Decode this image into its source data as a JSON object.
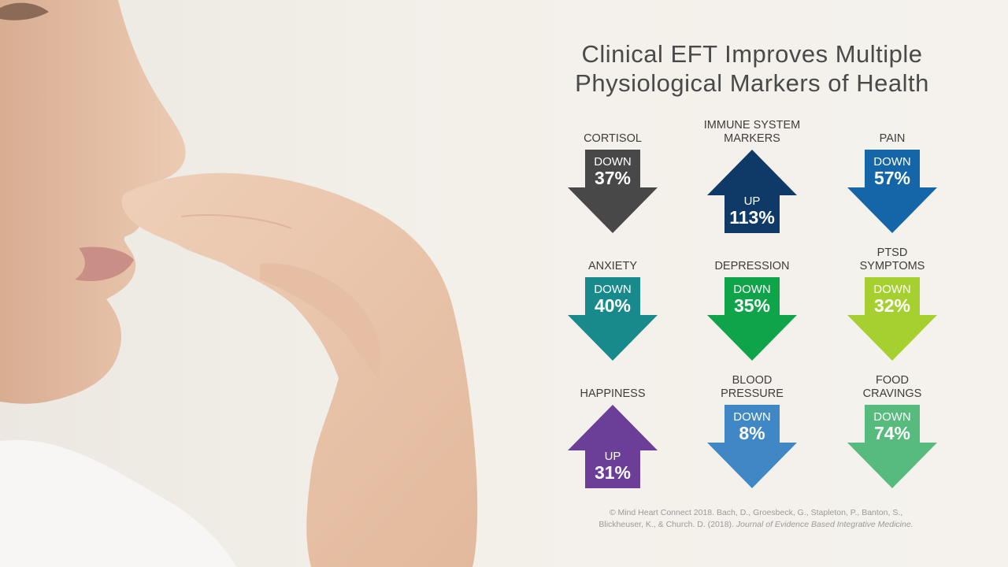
{
  "title": {
    "line1": "Clinical EFT Improves Multiple",
    "line2": "Physiological Markers of Health"
  },
  "markers": [
    {
      "label": "CORTISOL",
      "direction": "down",
      "dir_label": "DOWN",
      "percent": "37%",
      "color": "#484848"
    },
    {
      "label": "IMMUNE SYSTEM\nMARKERS",
      "direction": "up",
      "dir_label": "UP",
      "percent": "113%",
      "color": "#0f3a68"
    },
    {
      "label": "PAIN",
      "direction": "down",
      "dir_label": "DOWN",
      "percent": "57%",
      "color": "#1566a8"
    },
    {
      "label": "ANXIETY",
      "direction": "down",
      "dir_label": "DOWN",
      "percent": "40%",
      "color": "#188a8c"
    },
    {
      "label": "DEPRESSION",
      "direction": "down",
      "dir_label": "DOWN",
      "percent": "35%",
      "color": "#10a44a"
    },
    {
      "label": "PTSD\nSYMPTOMS",
      "direction": "down",
      "dir_label": "DOWN",
      "percent": "32%",
      "color": "#a6d030"
    },
    {
      "label": "HAPPINESS",
      "direction": "up",
      "dir_label": "UP",
      "percent": "31%",
      "color": "#6b3f98"
    },
    {
      "label": "BLOOD\nPRESSURE",
      "direction": "down",
      "dir_label": "DOWN",
      "percent": "8%",
      "color": "#3f88c5"
    },
    {
      "label": "FOOD\nCRAVINGS",
      "direction": "down",
      "dir_label": "DOWN",
      "percent": "74%",
      "color": "#56bb7c"
    }
  ],
  "citation": {
    "line1": "© Mind Heart Connect 2018. Bach, D., Groesbeck, G., Stapleton, P., Banton, S.,",
    "line2_prefix": "Blickheuser, K., & Church. D. (2018). ",
    "journal": "Journal of Evidence Based Integrative Medicine."
  }
}
